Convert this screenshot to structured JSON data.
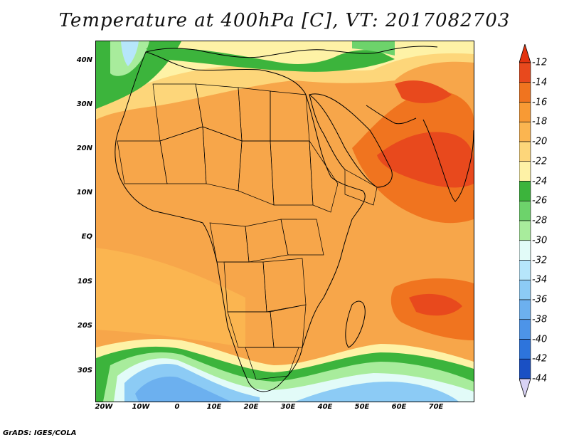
{
  "title": "Temperature at 400hPa [C], VT: 2017082703",
  "footer": "GrADS: IGES/COLA",
  "map": {
    "lat_labels": [
      "40N",
      "30N",
      "20N",
      "10N",
      "EQ",
      "10S",
      "20S",
      "30S"
    ],
    "lon_labels": [
      "20W",
      "10W",
      "0",
      "10E",
      "20E",
      "30E",
      "40E",
      "50E",
      "60E",
      "70E"
    ]
  },
  "colorbar": {
    "labels": [
      "-12",
      "-14",
      "-16",
      "-18",
      "-20",
      "-22",
      "-24",
      "-26",
      "-28",
      "-30",
      "-32",
      "-34",
      "-36",
      "-38",
      "-40",
      "-42",
      "-44"
    ],
    "colors": [
      "#e8491d",
      "#f0741f",
      "#f89a34",
      "#fbb550",
      "#fdd67a",
      "#fef2a6",
      "#3cb43c",
      "#6dd36b",
      "#a8ec9c",
      "#e2fbf8",
      "#b6e6fb",
      "#8ccbf5",
      "#6cb0ef",
      "#4d94e8",
      "#2d74dc",
      "#1a50c4",
      "#0f1f85"
    ],
    "top_arrow_color": "#e33410",
    "bottom_arrow_color": "#d9d3f5"
  }
}
